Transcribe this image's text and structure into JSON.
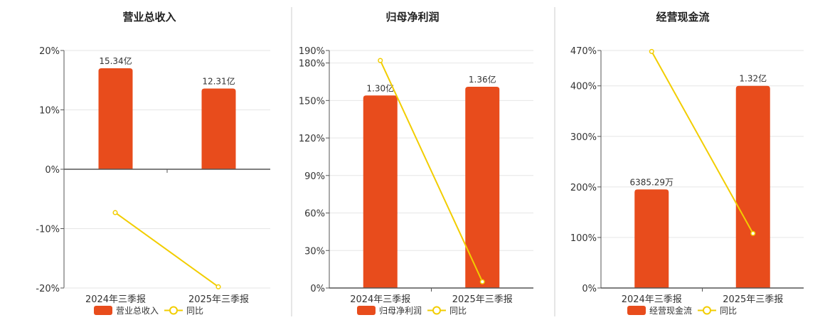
{
  "colors": {
    "bar": "#E84C1C",
    "line": "#F2CD00",
    "grid": "#e6e6e6",
    "axis": "#555555",
    "divider": "#cccccc"
  },
  "legend": {
    "line_label": "同比"
  },
  "chart_data": [
    {
      "type": "bar",
      "title": "营业总收入",
      "categories": [
        "2024年三季报",
        "2025年三季报"
      ],
      "series": [
        {
          "name": "营业总收入",
          "type": "bar",
          "values": [
            17.0,
            13.6
          ],
          "labels": [
            "15.34亿",
            "12.31亿"
          ]
        },
        {
          "name": "同比",
          "type": "line",
          "values": [
            -7.3,
            -19.8
          ]
        }
      ],
      "ylim": [
        -20,
        20
      ],
      "yticks": [
        -20,
        -10,
        0,
        10,
        20
      ],
      "ytick_labels": [
        "-20%",
        "-10%",
        "0%",
        "10%",
        "20%"
      ],
      "grid": true
    },
    {
      "type": "bar",
      "title": "归母净利润",
      "categories": [
        "2024年三季报",
        "2025年三季报"
      ],
      "series": [
        {
          "name": "归母净利润",
          "type": "bar",
          "values": [
            154,
            161
          ],
          "labels": [
            "1.30亿",
            "1.36亿"
          ]
        },
        {
          "name": "同比",
          "type": "line",
          "values": [
            182,
            5
          ]
        }
      ],
      "ylim": [
        0,
        190
      ],
      "yticks": [
        0,
        30,
        60,
        90,
        120,
        150,
        180,
        190
      ],
      "ytick_labels": [
        "0%",
        "30%",
        "60%",
        "90%",
        "120%",
        "150%",
        "180%",
        "190%"
      ],
      "grid": true
    },
    {
      "type": "bar",
      "title": "经营现金流",
      "categories": [
        "2024年三季报",
        "2025年三季报"
      ],
      "series": [
        {
          "name": "经营现金流",
          "type": "bar",
          "values": [
            195,
            400
          ],
          "labels": [
            "6385.29万",
            "1.32亿"
          ]
        },
        {
          "name": "同比",
          "type": "line",
          "values": [
            468,
            108
          ]
        }
      ],
      "ylim": [
        0,
        470
      ],
      "yticks": [
        0,
        100,
        200,
        300,
        400,
        470
      ],
      "ytick_labels": [
        "0%",
        "100%",
        "200%",
        "300%",
        "400%",
        "470%"
      ],
      "grid": true
    }
  ]
}
